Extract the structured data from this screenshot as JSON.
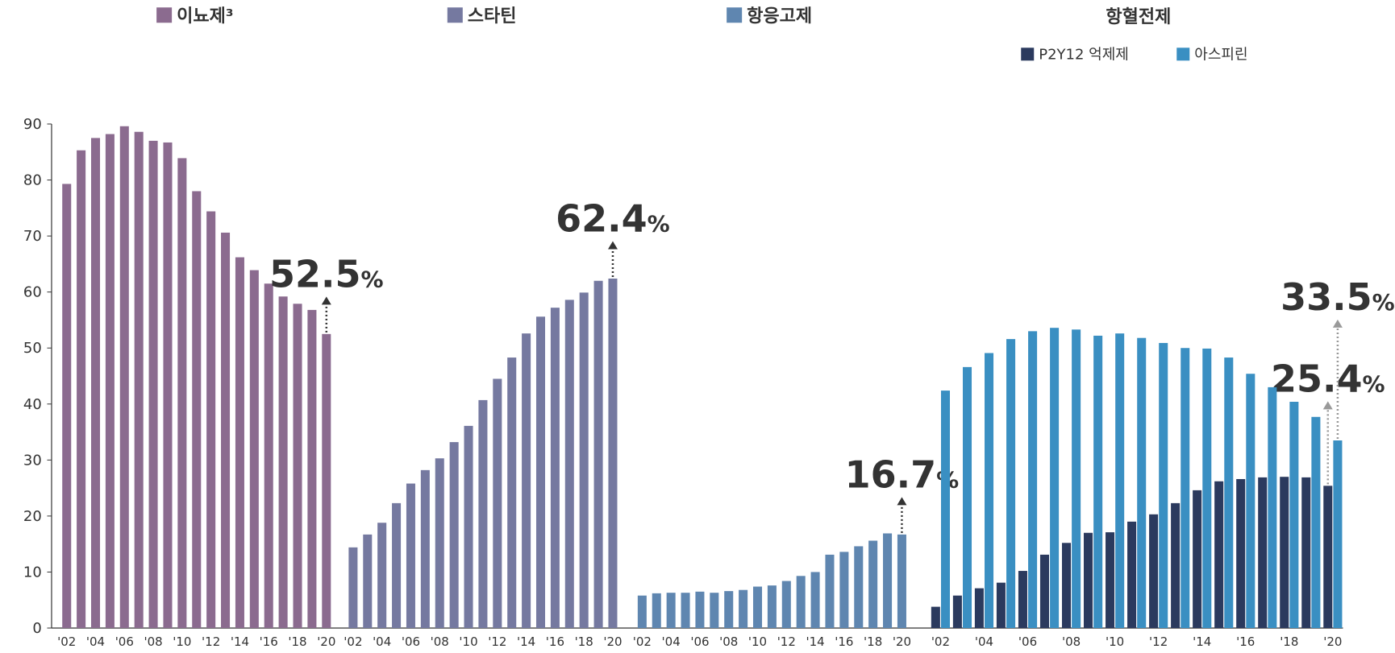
{
  "chart_data": [
    {
      "type": "bar",
      "categories": [
        "'02",
        null,
        "'04",
        null,
        "'06",
        null,
        "'08",
        null,
        "'10",
        null,
        "'12",
        null,
        "'14",
        null,
        "'16",
        null,
        "'18",
        null,
        "'20"
      ],
      "series": [
        {
          "name": "이뇨제³",
          "color": "#8b6b8f",
          "values": [
            79.3,
            85.3,
            87.5,
            88.2,
            89.6,
            88.6,
            87.0,
            86.7,
            83.9,
            78.0,
            74.4,
            70.6,
            66.2,
            63.9,
            61.5,
            59.2,
            57.9,
            56.8,
            52.5
          ],
          "value_labels": [
            null,
            null,
            null,
            null,
            null,
            null,
            null,
            null,
            null,
            null,
            null,
            null,
            null,
            null,
            null,
            null,
            null,
            null,
            "52.5%"
          ]
        }
      ],
      "ylim": [
        0,
        90
      ],
      "yticks": [
        0,
        10,
        20,
        30,
        40,
        50,
        60,
        70,
        80,
        90
      ]
    },
    {
      "type": "bar",
      "categories": [
        "'02",
        null,
        "'04",
        null,
        "'06",
        null,
        "'08",
        null,
        "'10",
        null,
        "'12",
        null,
        "'14",
        null,
        "'16",
        null,
        "'18",
        null,
        "'20"
      ],
      "series": [
        {
          "name": "스타틴",
          "color": "#7579a0",
          "values": [
            14.4,
            16.7,
            18.8,
            22.3,
            25.8,
            28.2,
            30.3,
            33.2,
            36.1,
            40.7,
            44.5,
            48.3,
            52.6,
            55.6,
            57.2,
            58.6,
            59.9,
            62.0,
            62.4
          ],
          "value_labels": [
            null,
            null,
            null,
            null,
            null,
            null,
            null,
            null,
            null,
            null,
            null,
            null,
            null,
            null,
            null,
            null,
            null,
            null,
            "62.4%"
          ]
        }
      ],
      "ylim": [
        0,
        90
      ]
    },
    {
      "type": "bar",
      "categories": [
        "'02",
        null,
        "'04",
        null,
        "'06",
        null,
        "'08",
        null,
        "'10",
        null,
        "'12",
        null,
        "'14",
        null,
        "'16",
        null,
        "'18",
        null,
        "'20"
      ],
      "series": [
        {
          "name": "항응고제",
          "color": "#5f86b0",
          "values": [
            5.8,
            6.2,
            6.3,
            6.3,
            6.5,
            6.3,
            6.6,
            6.8,
            7.4,
            7.6,
            8.4,
            9.3,
            10.0,
            13.1,
            13.6,
            14.6,
            15.6,
            16.9,
            16.7
          ],
          "value_labels": [
            null,
            null,
            null,
            null,
            null,
            null,
            null,
            null,
            null,
            null,
            null,
            null,
            null,
            null,
            null,
            null,
            null,
            null,
            "16.7%"
          ]
        }
      ],
      "ylim": [
        0,
        90
      ]
    },
    {
      "type": "bar",
      "title": "항혈전제",
      "categories": [
        "'02",
        null,
        "'04",
        null,
        "'06",
        null,
        "'08",
        null,
        "'10",
        null,
        "'12",
        null,
        "'14",
        null,
        "'16",
        null,
        "'18",
        null,
        "'20"
      ],
      "series": [
        {
          "name": "P2Y12 억제제",
          "color": "#2b3a5e",
          "values": [
            3.8,
            5.8,
            7.1,
            8.1,
            10.2,
            13.1,
            15.2,
            17.0,
            17.1,
            19.0,
            20.3,
            22.3,
            24.6,
            26.2,
            26.6,
            26.9,
            27.0,
            26.9,
            25.4
          ],
          "value_labels": [
            null,
            null,
            null,
            null,
            null,
            null,
            null,
            null,
            null,
            null,
            null,
            null,
            null,
            null,
            null,
            null,
            null,
            null,
            "25.4%"
          ]
        },
        {
          "name": "아스피린",
          "color": "#3a8fc2",
          "values": [
            42.4,
            46.6,
            49.1,
            51.6,
            53.0,
            53.6,
            53.3,
            52.2,
            52.6,
            51.8,
            50.9,
            50.0,
            49.9,
            48.3,
            45.4,
            43.0,
            40.4,
            37.7,
            33.5
          ],
          "value_labels": [
            null,
            null,
            null,
            null,
            null,
            null,
            null,
            null,
            null,
            null,
            null,
            null,
            null,
            null,
            null,
            null,
            null,
            null,
            "33.5%"
          ]
        }
      ],
      "ylim": [
        0,
        90
      ]
    }
  ]
}
